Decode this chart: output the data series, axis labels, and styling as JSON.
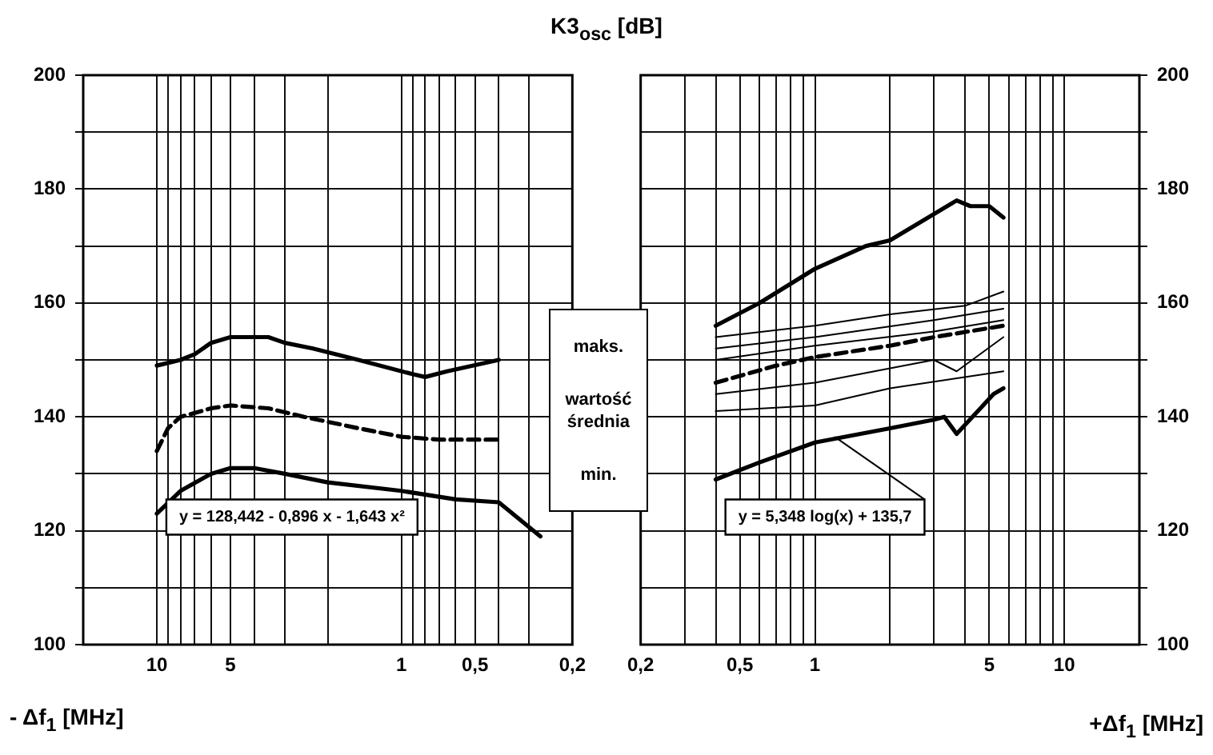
{
  "chart_data": [
    {
      "type": "line",
      "title": "K3$_{osc}$ [dB]",
      "xlabel": "- Δf$_{1}$ [MHz]",
      "log": "x",
      "grid": true,
      "legend": false,
      "marker": "none",
      "xlim": [
        20,
        0.2
      ],
      "ylim": [
        100,
        200
      ],
      "xticks": [
        10,
        {
          "value": 9,
          "label": null
        },
        {
          "value": 8,
          "label": null
        },
        {
          "value": 7,
          "label": null
        },
        {
          "value": 6,
          "label": null
        },
        5,
        {
          "value": 4,
          "label": null
        },
        {
          "value": 3,
          "label": null
        },
        {
          "value": 2,
          "label": null
        },
        1,
        {
          "value": 0.9,
          "label": null
        },
        {
          "value": 0.8,
          "label": null
        },
        {
          "value": 0.7,
          "label": null
        },
        {
          "value": 0.6,
          "label": null
        },
        {
          "value": 0.5,
          "label": "0,5"
        },
        {
          "value": 0.4,
          "label": null
        },
        {
          "value": 0.3,
          "label": null
        },
        {
          "value": 0.2,
          "label": "0,2"
        }
      ],
      "yticks": [
        100,
        {
          "value": 110,
          "label": null
        },
        120,
        {
          "value": 130,
          "label": null
        },
        140,
        {
          "value": 150,
          "label": null
        },
        160,
        {
          "value": 170,
          "label": null
        },
        180,
        {
          "value": 190,
          "label": null
        },
        200
      ],
      "series": [
        {
          "color": "#000000",
          "x": [
            10,
            8,
            7,
            6,
            5,
            3.5,
            3,
            2.3,
            1.5,
            0.9,
            0.8,
            0.65,
            0.4
          ],
          "values": [
            149,
            150,
            151,
            153,
            154,
            154,
            153,
            152,
            150,
            147.5,
            147,
            148,
            150
          ]
        },
        {
          "color": "#000000",
          "line_style": "dashed",
          "x": [
            10,
            9,
            8,
            6,
            5,
            3.5,
            2.5,
            1.5,
            1,
            0.7,
            0.4
          ],
          "values": [
            134,
            138,
            140,
            141.5,
            142,
            141.5,
            140,
            138,
            136.5,
            136,
            136
          ]
        },
        {
          "color": "#000000",
          "x": [
            10,
            8,
            6,
            5,
            4,
            3,
            2,
            1,
            0.6,
            0.4,
            0.27
          ],
          "values": [
            123,
            127,
            130,
            131,
            131,
            130,
            128.5,
            127,
            125.5,
            125,
            119
          ]
        }
      ],
      "annotations": [
        "y = 128,442 - 0,896 x - 1,643 x²"
      ]
    },
    {
      "type": "other",
      "annotations": [
        "maks.",
        "wartość średnia",
        "min."
      ]
    },
    {
      "type": "line",
      "xlabel": "+Δf$_{1}$ [MHz]",
      "log": "x",
      "grid": true,
      "legend": false,
      "marker": "none",
      "xlim": [
        0.2,
        20
      ],
      "ylim": [
        100,
        200
      ],
      "xticks": [
        {
          "value": 0.2,
          "label": "0,2"
        },
        {
          "value": 0.3,
          "label": null
        },
        {
          "value": 0.4,
          "label": null
        },
        {
          "value": 0.5,
          "label": "0,5"
        },
        {
          "value": 0.6,
          "label": null
        },
        {
          "value": 0.7,
          "label": null
        },
        {
          "value": 0.8,
          "label": null
        },
        {
          "value": 0.9,
          "label": null
        },
        1,
        {
          "value": 2,
          "label": null
        },
        {
          "value": 3,
          "label": null
        },
        {
          "value": 4,
          "label": null
        },
        5,
        {
          "value": 6,
          "label": null
        },
        {
          "value": 7,
          "label": null
        },
        {
          "value": 8,
          "label": null
        },
        {
          "value": 9,
          "label": null
        },
        10
      ],
      "yticks": [
        100,
        {
          "value": 110,
          "label": null
        },
        120,
        {
          "value": 130,
          "label": null
        },
        140,
        {
          "value": 150,
          "label": null
        },
        160,
        {
          "value": 170,
          "label": null
        },
        180,
        {
          "value": 190,
          "label": null
        },
        200
      ],
      "series": [
        {
          "color": "#000000",
          "x": [
            0.4,
            0.6,
            1,
            1.6,
            2,
            3.7,
            4.2,
            5,
            5.7
          ],
          "values": [
            156,
            160,
            166,
            170,
            171,
            178,
            177,
            177,
            175
          ]
        },
        {
          "color": "#000000",
          "line_style": "dashed",
          "x": [
            0.4,
            0.7,
            1,
            2,
            3,
            5.7
          ],
          "values": [
            146,
            149,
            150.5,
            152.5,
            154,
            156
          ]
        },
        {
          "color": "#000000",
          "x": [
            0.4,
            0.6,
            1,
            2,
            3,
            3.3,
            3.7,
            4.5,
            5.2,
            5.7
          ],
          "values": [
            129,
            132,
            135.5,
            138,
            139.5,
            140,
            137,
            141,
            144,
            145
          ]
        },
        {
          "color": "#000000",
          "x": [
            0.4,
            1,
            2,
            4,
            5.7
          ],
          "values": [
            154,
            156,
            158,
            159.5,
            162
          ]
        },
        {
          "color": "#000000",
          "x": [
            0.4,
            1,
            3,
            5.7
          ],
          "values": [
            152,
            154,
            157,
            159
          ]
        },
        {
          "color": "#000000",
          "x": [
            0.4,
            1,
            3,
            5.7
          ],
          "values": [
            150,
            152.5,
            155,
            157
          ]
        },
        {
          "color": "#000000",
          "x": [
            0.4,
            1,
            3,
            3.7,
            5.7
          ],
          "values": [
            144,
            146,
            150,
            148,
            154
          ]
        },
        {
          "color": "#000000",
          "x": [
            0.4,
            1,
            2,
            5.7
          ],
          "values": [
            141,
            142,
            145,
            148
          ]
        }
      ],
      "annotations": [
        {
          "text": "y = 5,348 log(x) + 135,7",
          "x": 1.2,
          "y": 136.5
        }
      ]
    }
  ]
}
